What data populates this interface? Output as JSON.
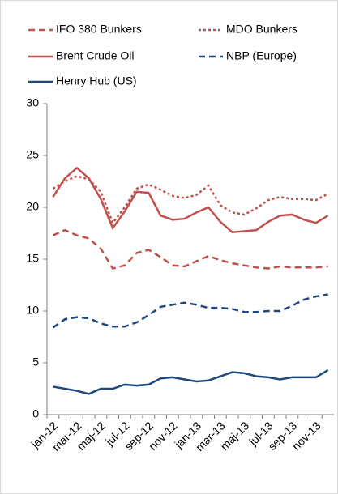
{
  "chart_data": {
    "type": "line",
    "categories": [
      "jan-12",
      null,
      "mar-12",
      null,
      "maj-12",
      null,
      "jul-12",
      null,
      "sep-12",
      null,
      "nov-12",
      null,
      "jan-13",
      null,
      "mar-13",
      null,
      "maj-13",
      null,
      "jul-13",
      null,
      "sep-13",
      null,
      "nov-13",
      null
    ],
    "series": [
      {
        "name": "IFO 380 Bunkers",
        "color": "#c0504d",
        "dash": "dash",
        "values": [
          17.3,
          17.8,
          17.3,
          17.0,
          16.0,
          14.1,
          14.4,
          15.6,
          15.9,
          15.2,
          14.4,
          14.3,
          14.8,
          15.3,
          14.9,
          14.6,
          14.4,
          14.2,
          14.1,
          14.3,
          14.2,
          14.2,
          14.2,
          14.3
        ]
      },
      {
        "name": "MDO Bunkers",
        "color": "#c0504d",
        "dash": "dot",
        "values": [
          21.8,
          22.5,
          23.0,
          22.7,
          21.5,
          18.5,
          20.0,
          21.8,
          22.2,
          21.7,
          21.1,
          20.9,
          21.2,
          22.1,
          20.2,
          19.5,
          19.3,
          19.9,
          20.7,
          21.0,
          20.8,
          20.8,
          20.7,
          21.3
        ]
      },
      {
        "name": "Brent Crude Oil",
        "color": "#c0504d",
        "dash": "solid",
        "values": [
          21.0,
          22.8,
          23.8,
          22.8,
          20.8,
          18.0,
          19.6,
          21.5,
          21.4,
          19.2,
          18.8,
          18.9,
          19.5,
          20.0,
          18.6,
          17.6,
          17.7,
          17.8,
          18.6,
          19.2,
          19.3,
          18.8,
          18.5,
          19.2
        ]
      },
      {
        "name": "NBP (Europe)",
        "color": "#1f497d",
        "dash": "dash",
        "values": [
          8.4,
          9.2,
          9.4,
          9.3,
          8.8,
          8.5,
          8.5,
          8.9,
          9.6,
          10.4,
          10.6,
          10.8,
          10.6,
          10.3,
          10.3,
          10.2,
          9.9,
          9.9,
          10.0,
          10.0,
          10.5,
          11.1,
          11.4,
          11.6
        ]
      },
      {
        "name": "Henry Hub (US)",
        "color": "#1f497d",
        "dash": "solid",
        "values": [
          2.7,
          2.5,
          2.3,
          2.0,
          2.5,
          2.5,
          2.9,
          2.8,
          2.9,
          3.5,
          3.6,
          3.4,
          3.2,
          3.3,
          3.7,
          4.1,
          4.0,
          3.7,
          3.6,
          3.4,
          3.6,
          3.6,
          3.6,
          4.3
        ]
      }
    ],
    "ylim": [
      0,
      30
    ],
    "yticks": [
      0,
      5,
      10,
      15,
      20,
      25,
      30
    ],
    "grid": false
  }
}
